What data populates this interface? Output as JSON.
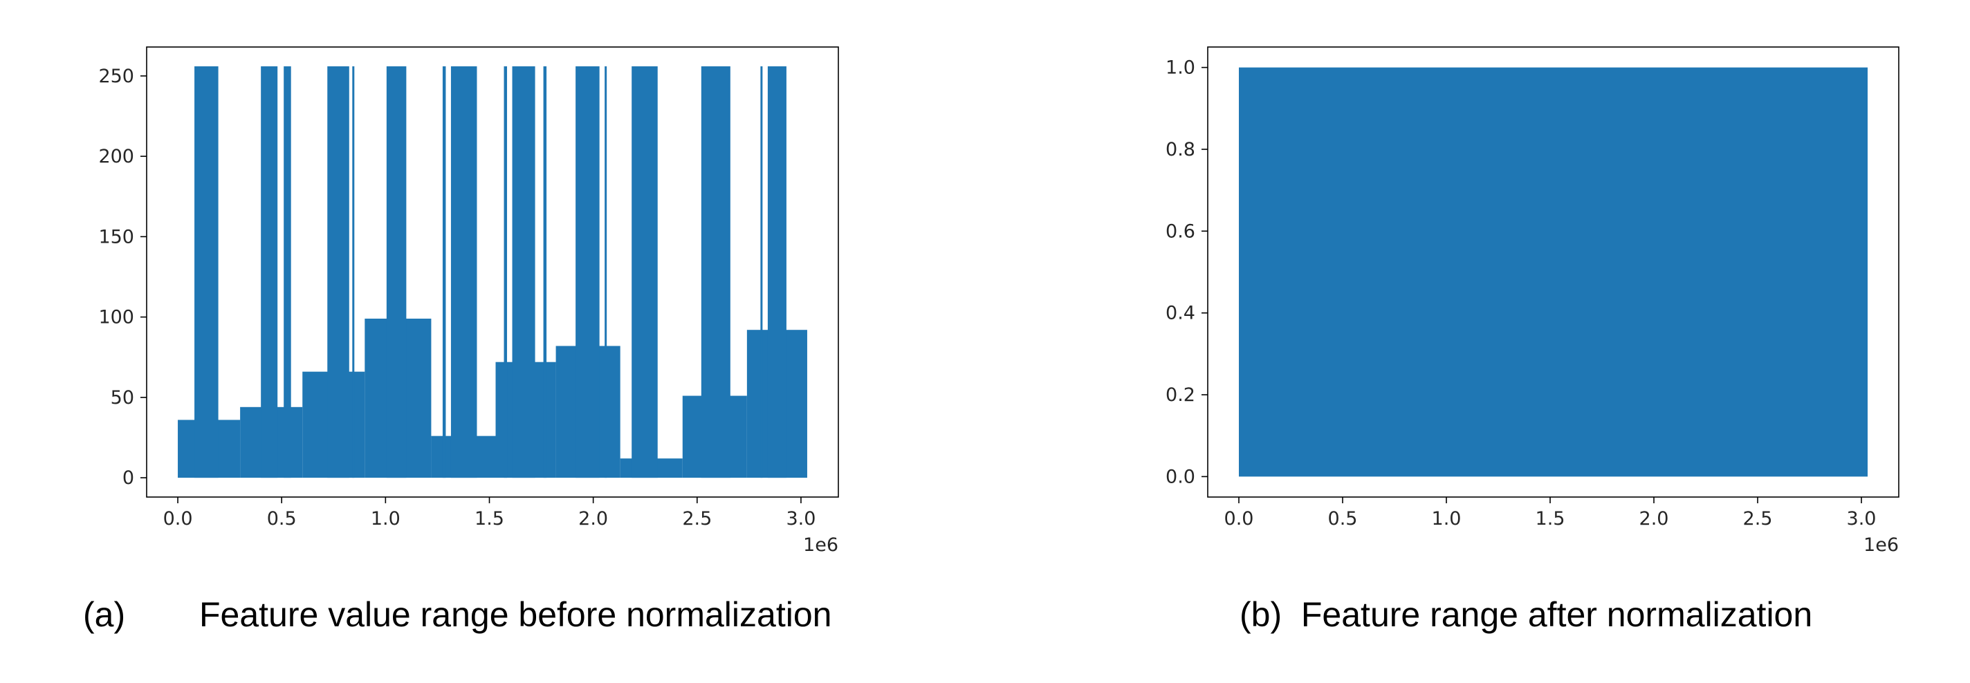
{
  "colors": {
    "series": "#1f77b4",
    "axes": "#000000",
    "text": "#262626"
  },
  "captions": {
    "a_label": "(a)",
    "a_text": "Feature value range before normalization",
    "b_text": "(b)  Feature range after normalization"
  },
  "chart_data": [
    {
      "type": "area",
      "x_range": [
        0,
        3030000
      ],
      "xlim": [
        -150000,
        3180000
      ],
      "ylim": [
        -12,
        268
      ],
      "x_ticks": [
        0,
        500000,
        1000000,
        1500000,
        2000000,
        2500000,
        3000000
      ],
      "x_tick_labels": [
        "0.0",
        "0.5",
        "1.0",
        "1.5",
        "2.0",
        "2.5",
        "3.0"
      ],
      "x_offset_label": "1e6",
      "y_ticks": [
        0,
        50,
        100,
        150,
        200,
        250
      ],
      "y_tick_labels": [
        "0",
        "50",
        "100",
        "150",
        "200",
        "250"
      ],
      "grid": false,
      "base_segments": [
        {
          "x0": 0,
          "x1": 300000,
          "y": 36
        },
        {
          "x0": 300000,
          "x1": 600000,
          "y": 44
        },
        {
          "x0": 600000,
          "x1": 900000,
          "y": 66
        },
        {
          "x0": 900000,
          "x1": 1220000,
          "y": 99
        },
        {
          "x0": 1220000,
          "x1": 1530000,
          "y": 26
        },
        {
          "x0": 1530000,
          "x1": 1820000,
          "y": 72
        },
        {
          "x0": 1820000,
          "x1": 2130000,
          "y": 82
        },
        {
          "x0": 2130000,
          "x1": 2430000,
          "y": 12
        },
        {
          "x0": 2430000,
          "x1": 2740000,
          "y": 51
        },
        {
          "x0": 2740000,
          "x1": 3030000,
          "y": 92
        }
      ],
      "spikes": [
        {
          "x0": 80000,
          "x1": 195000,
          "y": 256
        },
        {
          "x0": 400000,
          "x1": 480000,
          "y": 256
        },
        {
          "x0": 510000,
          "x1": 545000,
          "y": 256
        },
        {
          "x0": 720000,
          "x1": 825000,
          "y": 256
        },
        {
          "x0": 840000,
          "x1": 850000,
          "y": 256
        },
        {
          "x0": 1005000,
          "x1": 1100000,
          "y": 256
        },
        {
          "x0": 1275000,
          "x1": 1290000,
          "y": 256
        },
        {
          "x0": 1315000,
          "x1": 1440000,
          "y": 256
        },
        {
          "x0": 1570000,
          "x1": 1585000,
          "y": 256
        },
        {
          "x0": 1610000,
          "x1": 1720000,
          "y": 256
        },
        {
          "x0": 1760000,
          "x1": 1775000,
          "y": 256
        },
        {
          "x0": 1915000,
          "x1": 2030000,
          "y": 256
        },
        {
          "x0": 2055000,
          "x1": 2065000,
          "y": 256
        },
        {
          "x0": 2185000,
          "x1": 2310000,
          "y": 256
        },
        {
          "x0": 2520000,
          "x1": 2660000,
          "y": 256
        },
        {
          "x0": 2805000,
          "x1": 2815000,
          "y": 256
        },
        {
          "x0": 2840000,
          "x1": 2930000,
          "y": 256
        }
      ]
    },
    {
      "type": "area",
      "x_range": [
        0,
        3030000
      ],
      "xlim": [
        -150000,
        3180000
      ],
      "ylim": [
        -0.05,
        1.05
      ],
      "x_ticks": [
        0,
        500000,
        1000000,
        1500000,
        2000000,
        2500000,
        3000000
      ],
      "x_tick_labels": [
        "0.0",
        "0.5",
        "1.0",
        "1.5",
        "2.0",
        "2.5",
        "3.0"
      ],
      "x_offset_label": "1e6",
      "y_ticks": [
        0,
        0.2,
        0.4,
        0.6,
        0.8,
        1.0
      ],
      "y_tick_labels": [
        "0.0",
        "0.2",
        "0.4",
        "0.6",
        "0.8",
        "1.0"
      ],
      "grid": false,
      "base_segments": [
        {
          "x0": 0,
          "x1": 3030000,
          "y": 1.0
        }
      ],
      "spikes": []
    }
  ]
}
